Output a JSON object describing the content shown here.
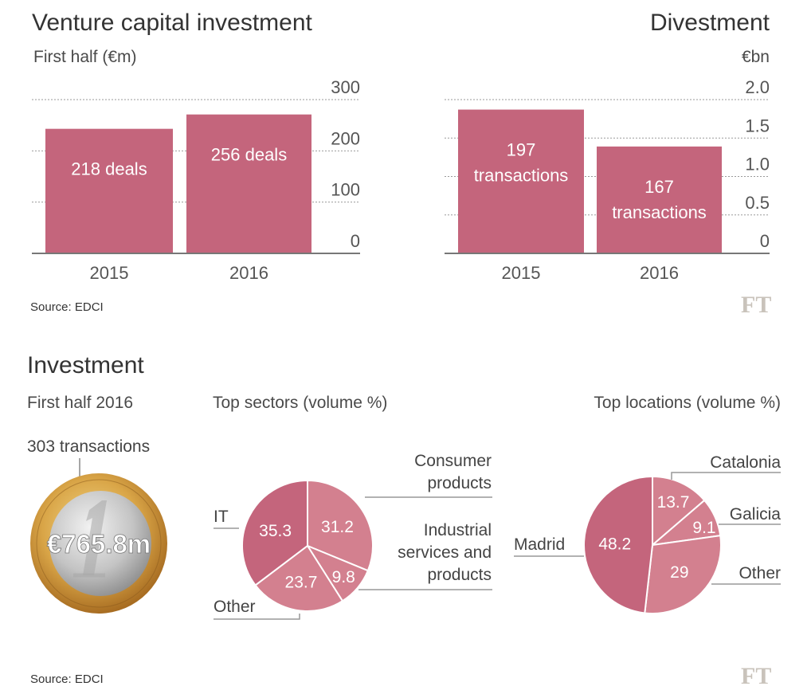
{
  "colors": {
    "bar": "#c4657c",
    "pie_dark": "#c4657c",
    "pie_light": "#d3808f",
    "grid": "#999999",
    "axis": "#777777"
  },
  "logo": "FT",
  "chart_data": [
    {
      "type": "bar",
      "title": "Venture capital investment",
      "subtitle": "First half (€m)",
      "categories": [
        "2015",
        "2016"
      ],
      "values": [
        243,
        271
      ],
      "bar_labels": [
        "218 deals",
        "256 deals"
      ],
      "ylim": [
        0,
        300
      ],
      "yticks": [
        "0",
        "100",
        "200",
        "300"
      ],
      "ytick_values": [
        0,
        100,
        200,
        300
      ],
      "grid": true,
      "source": "Source: EDCI"
    },
    {
      "type": "bar",
      "title": "Divestment",
      "ylabel": "€bn",
      "categories": [
        "2015",
        "2016"
      ],
      "values": [
        1.87,
        1.39
      ],
      "bar_labels": [
        [
          "197",
          "transactions"
        ],
        [
          "167",
          "transactions"
        ]
      ],
      "ylim": [
        0,
        2.0
      ],
      "yticks": [
        "0",
        "0.5",
        "1.0",
        "1.5",
        "2.0"
      ],
      "ytick_values": [
        0,
        0.5,
        1.0,
        1.5,
        2.0
      ],
      "grid": true
    },
    {
      "type": "pie",
      "title": "Top sectors (volume %)",
      "slices": [
        {
          "label": [
            "Consumer",
            "products"
          ],
          "value": 31.2,
          "display": "31.2"
        },
        {
          "label": [
            "Industrial",
            "services and",
            "products"
          ],
          "value": 9.8,
          "display": "9.8"
        },
        {
          "label": [
            "Other"
          ],
          "value": 23.7,
          "display": "23.7"
        },
        {
          "label": [
            "IT"
          ],
          "value": 35.3,
          "display": "35.3"
        }
      ],
      "highlight": "IT"
    },
    {
      "type": "pie",
      "title": "Top locations (volume %)",
      "slices": [
        {
          "label": [
            "Catalonia"
          ],
          "value": 13.7,
          "display": "13.7"
        },
        {
          "label": [
            "Galicia"
          ],
          "value": 9.1,
          "display": "9.1"
        },
        {
          "label": [
            "Other"
          ],
          "value": 29,
          "display": "29"
        },
        {
          "label": [
            "Madrid"
          ],
          "value": 48.2,
          "display": "48.2"
        }
      ],
      "highlight": "Madrid"
    }
  ],
  "investment": {
    "title": "Investment",
    "subtitle": "First half 2016",
    "transactions": "303 transactions",
    "total": "€765.8m",
    "source": "Source: EDCI"
  }
}
